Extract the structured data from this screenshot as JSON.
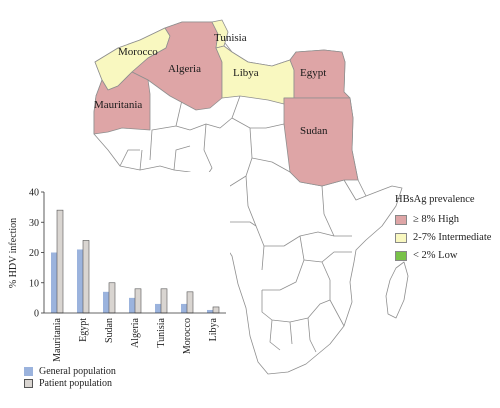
{
  "map": {
    "countries": [
      {
        "name": "Morocco",
        "category": "intermediate"
      },
      {
        "name": "Algeria",
        "category": "high"
      },
      {
        "name": "Tunisia",
        "category": "intermediate"
      },
      {
        "name": "Libya",
        "category": "intermediate"
      },
      {
        "name": "Egypt",
        "category": "high"
      },
      {
        "name": "Mauritania",
        "category": "high"
      },
      {
        "name": "Sudan",
        "category": "high"
      }
    ],
    "colors": {
      "high": "#dea5a6",
      "intermediate": "#f9f8c0",
      "low": "#79c249",
      "other": "#ffffff",
      "border": "#8f8f8f"
    }
  },
  "prevalence_legend": {
    "title": "HBsAg prevalence",
    "items": [
      {
        "label": "≥ 8% High",
        "category": "high"
      },
      {
        "label": "2-7% Intermediate",
        "category": "intermediate"
      },
      {
        "label": "< 2% Low",
        "category": "low"
      }
    ]
  },
  "chart_data": {
    "type": "bar",
    "categories": [
      "Mauritania",
      "Egypt",
      "Sudan",
      "Algeria",
      "Tunisia",
      "Morocco",
      "Libya"
    ],
    "series": [
      {
        "name": "General population",
        "values": [
          20,
          21,
          7,
          5,
          3,
          3,
          1
        ],
        "color": "#9bb3dd"
      },
      {
        "name": "Patient population",
        "values": [
          34,
          24,
          10,
          8,
          8,
          7,
          2
        ],
        "color": "#d9d5d1"
      }
    ],
    "ylabel": "% HDV infection",
    "ylim": [
      0,
      40
    ],
    "yticks": [
      0,
      10,
      20,
      30,
      40
    ],
    "grid": false,
    "legend_position": "bottom-left"
  }
}
